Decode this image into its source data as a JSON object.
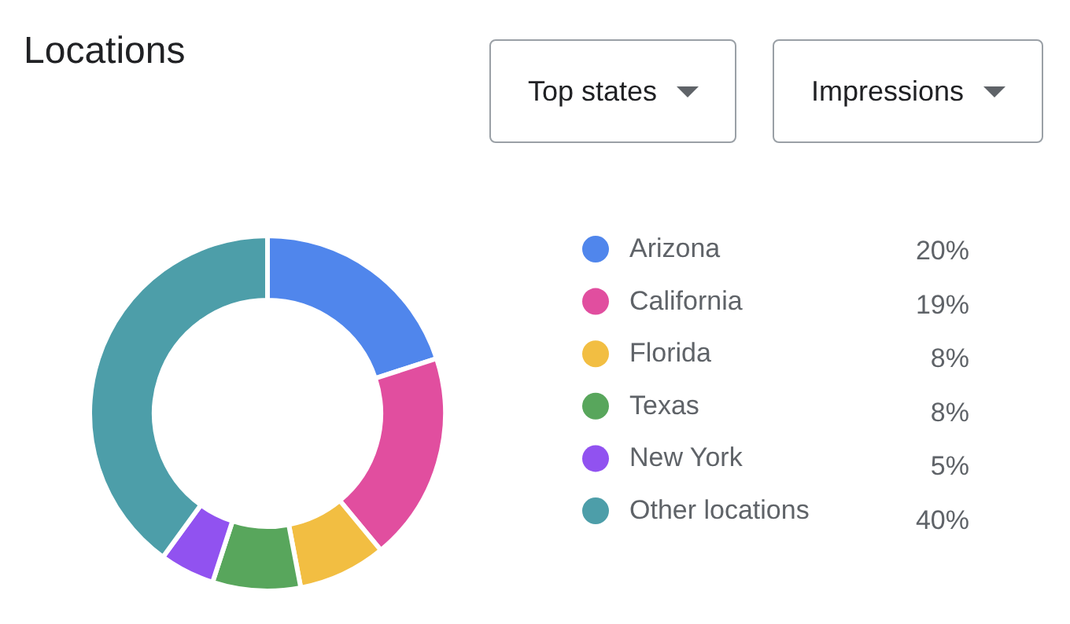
{
  "chart_data": {
    "type": "donut",
    "title": "Locations",
    "categories": [
      "Arizona",
      "California",
      "Florida",
      "Texas",
      "New York",
      "Other locations"
    ],
    "values": [
      20,
      19,
      8,
      8,
      5,
      40
    ],
    "colors": [
      "#5086ec",
      "#e14e9f",
      "#f2be42",
      "#58a65c",
      "#9152f0",
      "#4d9ea9"
    ],
    "value_labels": [
      "20%",
      "19%",
      "8%",
      "8%",
      "5%",
      "40%"
    ],
    "legend": "right",
    "annotations": [
      "Top states",
      "Impressions"
    ]
  }
}
